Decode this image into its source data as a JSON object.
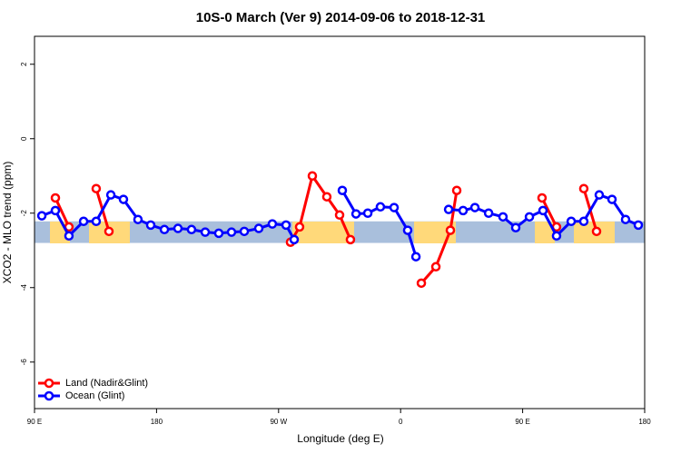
{
  "chart_data": {
    "type": "line",
    "title": "10S-0 March (Ver 9)   2014-09-06 to 2018-12-31",
    "x_label": "Longitude (deg E)",
    "y_label": "XCO2 - MLO trend (ppm)",
    "xlim": [
      90,
      540
    ],
    "ylim": [
      -7.25,
      2.75
    ],
    "xticks": [
      {
        "value": 90,
        "label": "90 E"
      },
      180,
      {
        "value": 270,
        "label": "90 W"
      },
      {
        "value": 360,
        "label": "0"
      },
      {
        "value": 450,
        "label": "90 E"
      },
      {
        "value": 540,
        "label": "180"
      }
    ],
    "yticks": [
      2,
      0,
      -2,
      -4,
      -6
    ],
    "band": [
      -2.22,
      -2.8
    ],
    "band_color": "#a9bfdc",
    "legend": "bottom-left",
    "series": [
      {
        "name": "Land (Nadir&Glint)",
        "color": "#ff0000",
        "x": [
          105.4,
          115.4,
          null,
          135.5,
          144.9,
          null,
          278.8,
          285.5,
          294.9,
          305.6,
          315.0,
          323.0,
          null,
          375.3,
          386.0,
          396.7,
          401.4,
          null,
          464.3,
          475.0,
          null,
          495.1,
          504.5
        ],
        "values": [
          -1.59,
          -2.37,
          null,
          -1.34,
          -2.49,
          null,
          -2.78,
          -2.37,
          -1.0,
          -1.56,
          -2.05,
          -2.71,
          null,
          -3.88,
          -3.44,
          -2.46,
          -1.39,
          null,
          -1.59,
          -2.37,
          null,
          -1.34,
          -2.49
        ]
      },
      {
        "name": "Ocean (Glint)",
        "color": "#0000ff",
        "x": [
          95.4,
          105.4,
          115.4,
          126.2,
          135.5,
          146.3,
          155.6,
          166.3,
          175.7,
          185.8,
          195.8,
          205.8,
          215.9,
          225.9,
          235.3,
          244.7,
          255.4,
          265.4,
          275.5,
          281.5,
          null,
          317.0,
          327.1,
          335.8,
          345.1,
          355.2,
          365.2,
          371.3,
          null,
          395.4,
          406.1,
          414.8,
          424.9,
          435.5,
          444.9,
          455.0,
          465.0,
          475.0,
          485.8,
          495.1,
          506.5,
          515.9,
          525.9,
          535.3
        ],
        "values": [
          -2.07,
          -1.93,
          -2.61,
          -2.22,
          -2.22,
          -1.51,
          -1.63,
          -2.17,
          -2.32,
          -2.44,
          -2.41,
          -2.44,
          -2.51,
          -2.54,
          -2.51,
          -2.49,
          -2.41,
          -2.29,
          -2.32,
          -2.71,
          null,
          -1.39,
          -2.02,
          -2.0,
          -1.83,
          -1.85,
          -2.46,
          -3.17,
          null,
          -1.9,
          -1.93,
          -1.85,
          -2.0,
          -2.1,
          -2.39,
          -2.1,
          -1.93,
          -2.61,
          -2.22,
          -2.22,
          -1.51,
          -1.63,
          -2.17,
          -2.32
        ]
      }
    ]
  }
}
